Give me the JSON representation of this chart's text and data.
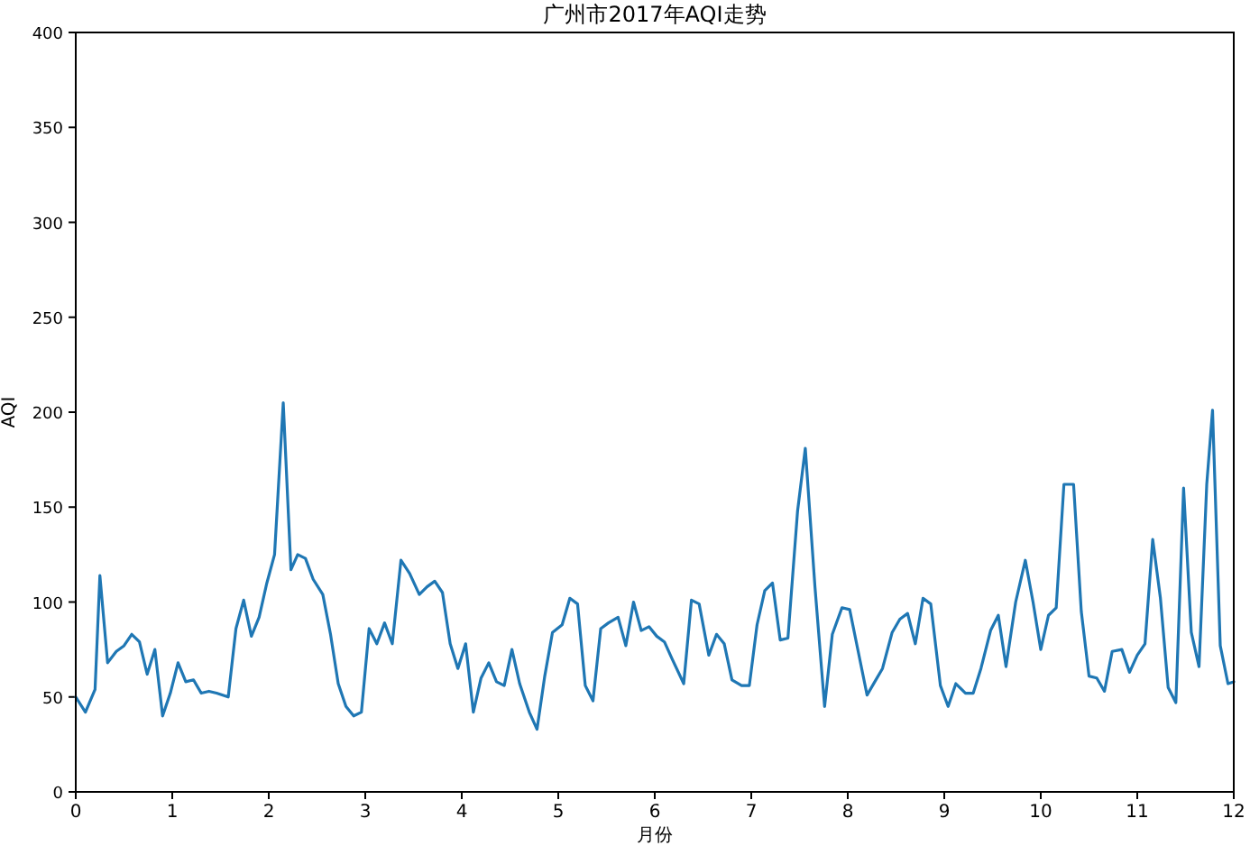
{
  "chart_data": {
    "type": "line",
    "title": "广州市2017年AQI走势",
    "xlabel": "月份",
    "ylabel": "AQI",
    "xlim": [
      0,
      12
    ],
    "xticks": [
      0,
      1,
      2,
      3,
      4,
      5,
      6,
      7,
      8,
      9,
      10,
      11,
      12
    ],
    "ylim": [
      0,
      400
    ],
    "yticks": [
      0,
      50,
      100,
      150,
      200,
      250,
      300,
      350,
      400
    ],
    "series": [
      {
        "color": "#1f77b4",
        "x": [
          0.0,
          0.1,
          0.2,
          0.25,
          0.33,
          0.42,
          0.5,
          0.58,
          0.66,
          0.74,
          0.82,
          0.9,
          0.98,
          1.06,
          1.14,
          1.22,
          1.3,
          1.38,
          1.46,
          1.58,
          1.66,
          1.74,
          1.82,
          1.9,
          1.98,
          2.06,
          2.15,
          2.23,
          2.3,
          2.38,
          2.46,
          2.56,
          2.64,
          2.72,
          2.8,
          2.88,
          2.96,
          3.04,
          3.12,
          3.2,
          3.28,
          3.37,
          3.46,
          3.56,
          3.64,
          3.72,
          3.8,
          3.88,
          3.96,
          4.04,
          4.12,
          4.2,
          4.28,
          4.36,
          4.44,
          4.52,
          4.6,
          4.7,
          4.78,
          4.86,
          4.94,
          5.04,
          5.12,
          5.2,
          5.28,
          5.36,
          5.44,
          5.52,
          5.62,
          5.7,
          5.78,
          5.86,
          5.94,
          6.02,
          6.1,
          6.18,
          6.3,
          6.38,
          6.46,
          6.56,
          6.64,
          6.72,
          6.8,
          6.9,
          6.98,
          7.06,
          7.14,
          7.22,
          7.3,
          7.38,
          7.48,
          7.56,
          7.66,
          7.76,
          7.84,
          7.94,
          8.02,
          8.1,
          8.2,
          8.28,
          8.36,
          8.46,
          8.54,
          8.62,
          8.7,
          8.78,
          8.86,
          8.96,
          9.04,
          9.12,
          9.22,
          9.3,
          9.38,
          9.48,
          9.56,
          9.64,
          9.74,
          9.84,
          9.92,
          10.0,
          10.08,
          10.16,
          10.24,
          10.34,
          10.42,
          10.5,
          10.58,
          10.66,
          10.74,
          10.84,
          10.92,
          11.0,
          11.08,
          11.16,
          11.24,
          11.32,
          11.4,
          11.48,
          11.56,
          11.64,
          11.72,
          11.78,
          11.86,
          11.94,
          12.0
        ],
        "values": [
          50,
          42,
          54,
          114,
          68,
          74,
          77,
          83,
          79,
          62,
          75,
          40,
          52,
          68,
          58,
          59,
          52,
          53,
          52,
          50,
          86,
          101,
          82,
          92,
          110,
          125,
          205,
          117,
          125,
          123,
          112,
          104,
          83,
          57,
          45,
          40,
          42,
          86,
          78,
          89,
          78,
          122,
          115,
          104,
          108,
          111,
          105,
          78,
          65,
          78,
          42,
          60,
          68,
          58,
          56,
          75,
          57,
          42,
          33,
          61,
          84,
          88,
          102,
          99,
          56,
          48,
          86,
          89,
          92,
          77,
          100,
          85,
          87,
          82,
          79,
          70,
          57,
          101,
          99,
          72,
          83,
          78,
          59,
          56,
          56,
          88,
          106,
          110,
          80,
          81,
          148,
          181,
          108,
          45,
          83,
          97,
          96,
          76,
          51,
          58,
          65,
          84,
          91,
          94,
          78,
          102,
          99,
          56,
          45,
          57,
          52,
          52,
          65,
          85,
          93,
          66,
          100,
          122,
          100,
          75,
          93,
          97,
          162,
          162,
          95,
          61,
          60,
          53,
          74,
          75,
          63,
          72,
          78,
          133,
          102,
          55,
          47,
          160,
          84,
          66,
          162,
          201,
          77,
          57,
          58
        ]
      }
    ]
  }
}
